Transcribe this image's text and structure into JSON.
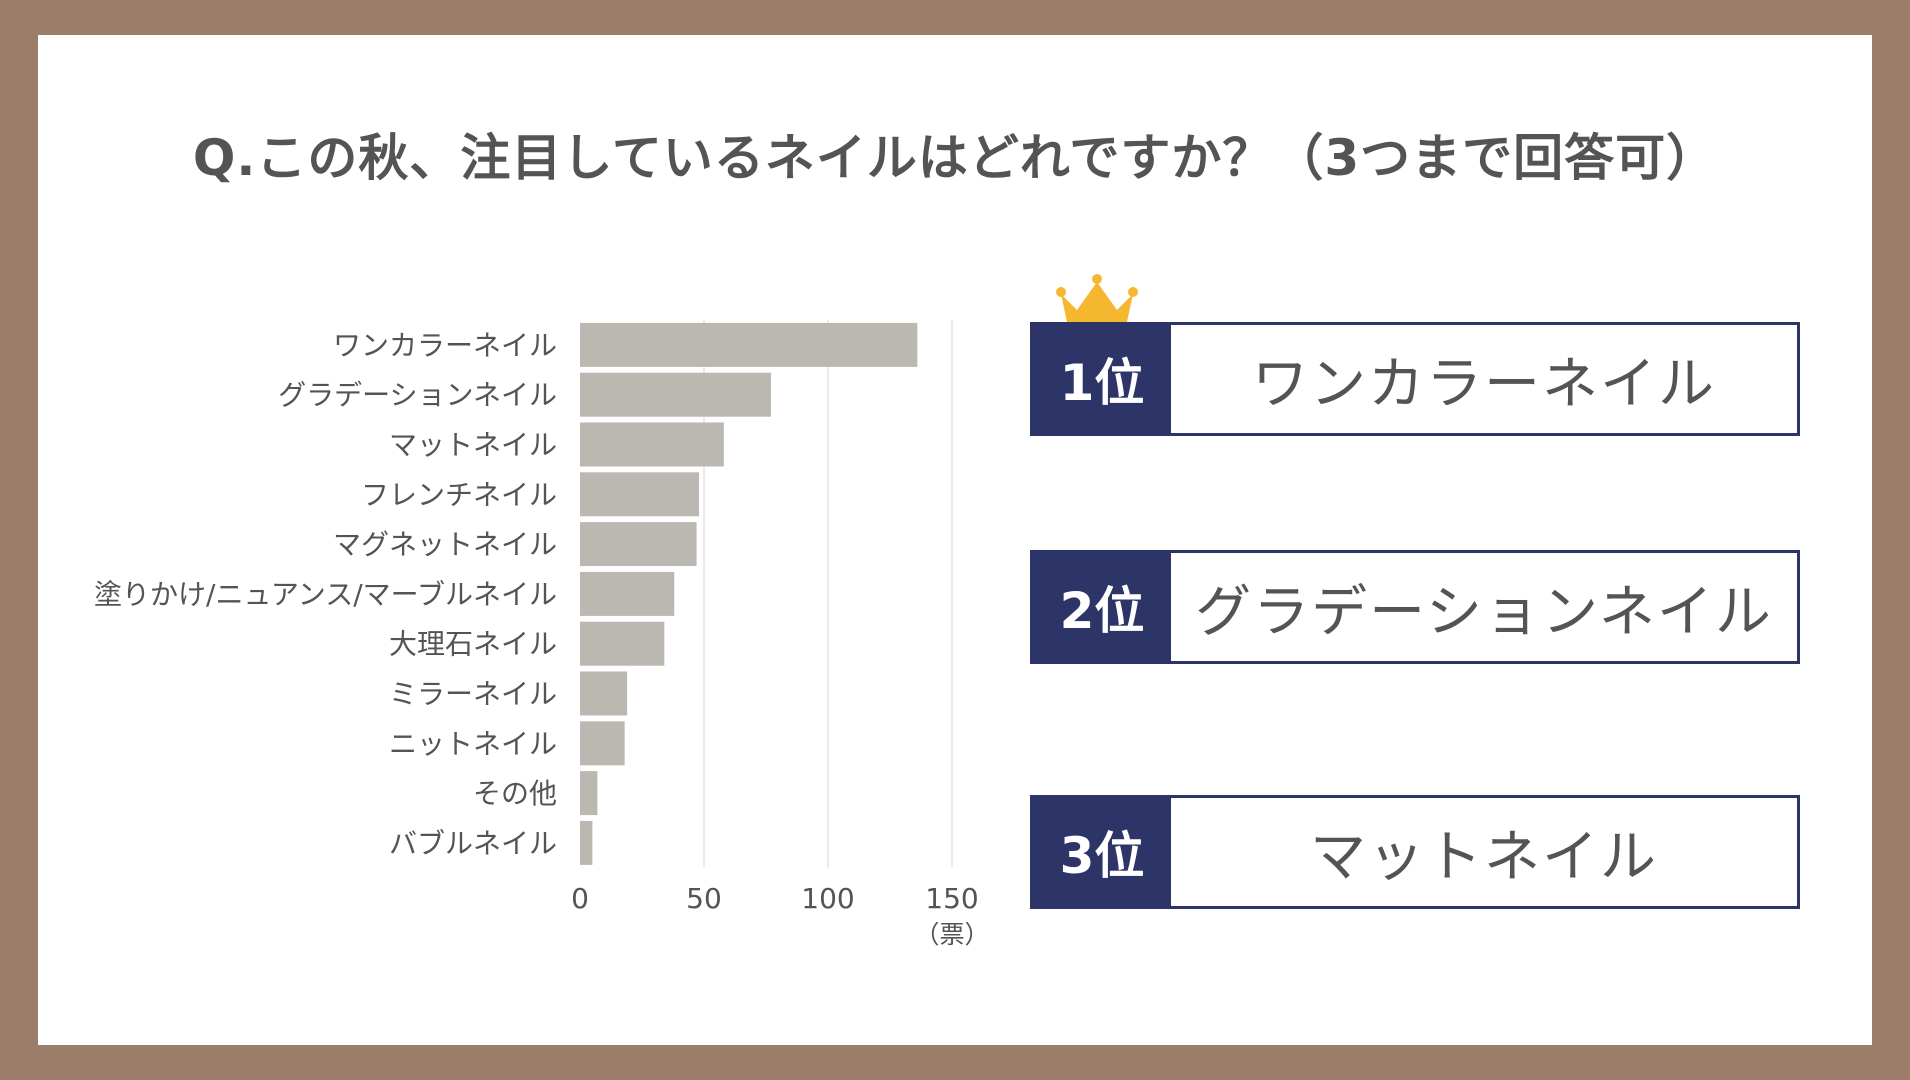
{
  "title": "Q.この秋、注目しているネイルはどれですか？（3つまで回答可）",
  "colors": {
    "bar": "#bbb7b1",
    "navy": "#2d3467",
    "frame": "#9c7d69",
    "crown": "#f5b72f",
    "text": "#545454"
  },
  "chart_data": {
    "type": "bar",
    "orientation": "horizontal",
    "categories": [
      "ワンカラーネイル",
      "グラデーションネイル",
      "マットネイル",
      "フレンチネイル",
      "マグネットネイル",
      "塗りかけ/ニュアンス/マーブルネイル",
      "大理石ネイル",
      "ミラーネイル",
      "ニットネイル",
      "その他",
      "バブルネイル"
    ],
    "values": [
      136,
      77,
      58,
      48,
      47,
      38,
      34,
      19,
      18,
      7,
      5
    ],
    "xlim": [
      0,
      150
    ],
    "xticks": [
      "0",
      "50",
      "100",
      "150"
    ],
    "xunit": "（票）",
    "grid": true
  },
  "ranking": [
    {
      "rank": "1位",
      "name": "ワンカラーネイル"
    },
    {
      "rank": "2位",
      "name": "グラデーションネイル"
    },
    {
      "rank": "3位",
      "name": "マットネイル"
    }
  ],
  "icons": {
    "crown": "crown-icon"
  }
}
